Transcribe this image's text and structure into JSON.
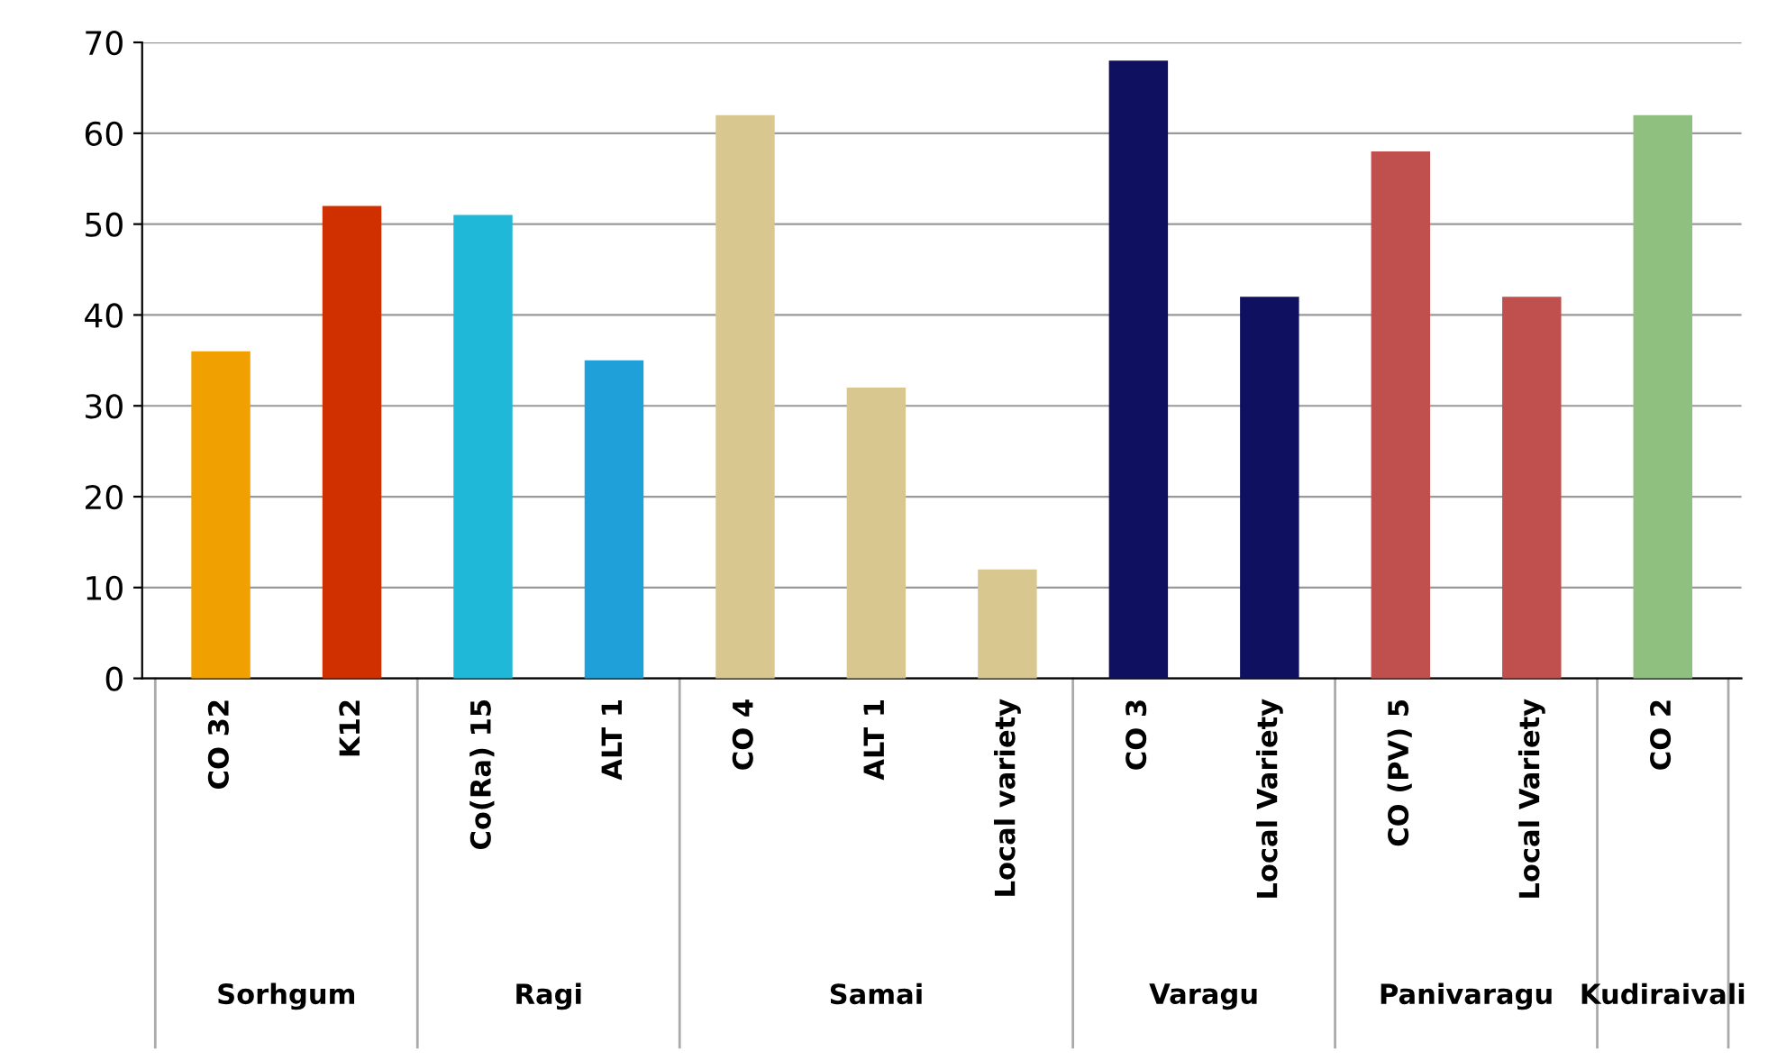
{
  "chart_data": {
    "type": "bar",
    "categories": [
      "CO 32",
      "K12",
      "Co(Ra) 15",
      "ALT 1",
      "CO 4",
      "ALT 1",
      "Local variety",
      "CO 3",
      "Local Variety",
      "CO (PV) 5",
      "Local Variety",
      "CO 2"
    ],
    "values": [
      36,
      52,
      51,
      35,
      62,
      32,
      12,
      68,
      42,
      58,
      42,
      62
    ],
    "colors": [
      "#f0a000",
      "#d03000",
      "#20b8d8",
      "#20a0d8",
      "#d8c890",
      "#d8c890",
      "#d8c890",
      "#101060",
      "#101060",
      "#c0504d",
      "#c0504d",
      "#90c080"
    ],
    "ylim": [
      0,
      70
    ],
    "yticks": [
      0,
      10,
      20,
      30,
      40,
      50,
      60,
      70
    ],
    "grid": "y",
    "legend": false,
    "annotations": [
      "Sorhgum",
      "Ragi",
      "Samai",
      "Varagu",
      "Panivaragu",
      "Kudiraivali"
    ]
  }
}
